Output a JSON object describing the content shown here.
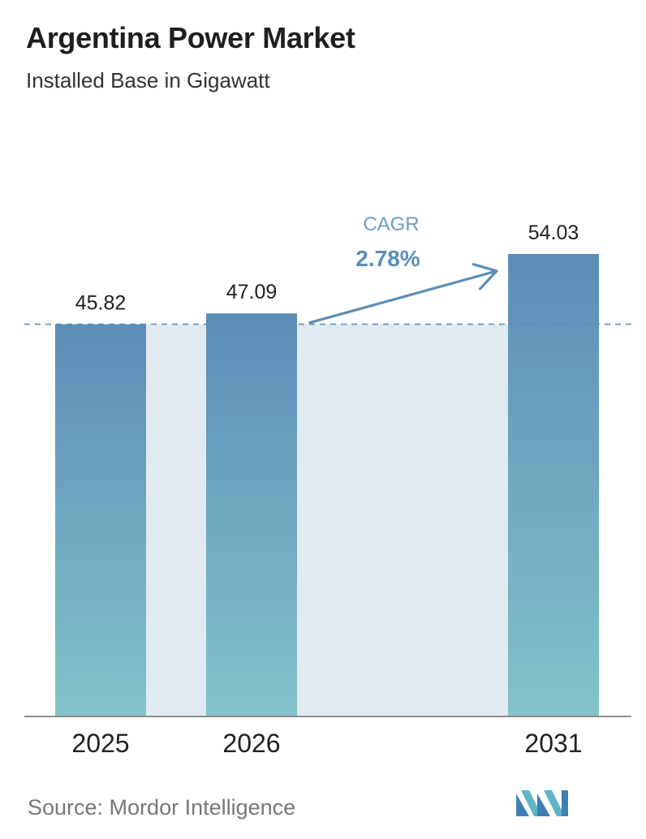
{
  "header": {
    "title": "Argentina Power Market",
    "subtitle": "Installed Base in Gigawatt"
  },
  "chart_data": {
    "type": "bar",
    "categories": [
      "2025",
      "2026",
      "2031"
    ],
    "values": [
      45.82,
      47.09,
      54.03
    ],
    "value_labels": [
      "45.82",
      "47.09",
      "54.03"
    ],
    "title": "Argentina Power Market",
    "subtitle": "Installed Base in Gigawatt",
    "xlabel": "",
    "ylabel": "",
    "grid": false,
    "annotation": {
      "label": "CAGR",
      "value": "2.78%",
      "from": "2026",
      "to": "2031"
    },
    "colors": {
      "bar_top": "#5b8db8",
      "bar_bottom": "#83c3c9",
      "band": "#e1e9f1",
      "arrow": "#5b8db8",
      "baseline": "#8e8e8e"
    }
  },
  "footer": {
    "source": "Source:  Mordor Intelligence",
    "logo_icon": "mordor-intelligence-logo-icon"
  }
}
